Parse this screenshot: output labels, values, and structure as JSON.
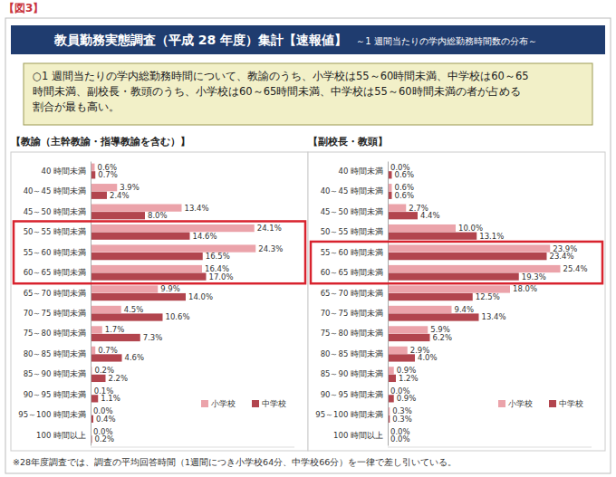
{
  "figure_label": "【図3】",
  "header": {
    "title": "教員勤務実態調査（平成 28 年度）集計【速報値】",
    "subtitle": "～1 週間当たりの学内総勤務時間数の分布～"
  },
  "summary": {
    "lines": [
      "○1 週間当たりの学内総勤務時間について、教諭のうち、小学校は55～60時間未満、中学校は60～65",
      "時間未満、副校長・教頭のうち、小学校は60～65時間未満、中学校は55～60時間未満の者が占める",
      "割合が最も高い。"
    ]
  },
  "footnote": "※28年度調査では、調査の平均回答時間（1週間につき小学校64分、中学校66分）を一律で差し引いている。",
  "chart_data": [
    {
      "type": "bar",
      "title": "【教諭（主幹教諭・指導教諭を含む）】",
      "orientation": "horizontal",
      "data_labels": true,
      "tick_labels": "y",
      "legend": "lower right",
      "categories": [
        "40 時間未満",
        "40～45 時間未満",
        "45～50 時間未満",
        "50～55 時間未満",
        "55～60 時間未満",
        "60～65 時間未満",
        "65～70 時間未満",
        "70～75 時間未満",
        "75～80 時間未満",
        "80～85 時間未満",
        "85～90 時間未満",
        "90～95 時間未満",
        "95～100 時間未満",
        "100 時間以上"
      ],
      "xlim": [
        0,
        30
      ],
      "series": [
        {
          "name": "小学校",
          "color": "#eba3aa",
          "values": [
            0.6,
            3.9,
            13.4,
            24.1,
            24.3,
            16.4,
            9.9,
            4.5,
            1.7,
            0.7,
            0.2,
            0.1,
            0.0,
            0.0
          ],
          "value_labels": [
            "0.6%",
            "3.9%",
            "13.4%",
            "24.1%",
            "24.3%",
            "16.4%",
            "9.9%",
            "4.5%",
            "1.7%",
            "0.7%",
            "0.2%",
            "0.1%",
            "0.0%",
            "0.0%"
          ]
        },
        {
          "name": "中学校",
          "color": "#b2454e",
          "values": [
            0.7,
            2.4,
            8.0,
            14.6,
            16.5,
            17.0,
            14.0,
            10.6,
            7.3,
            4.6,
            2.2,
            1.1,
            0.4,
            0.2
          ],
          "value_labels": [
            "0.7%",
            "2.4%",
            "8.0%",
            "14.6%",
            "16.5%",
            "17.0%",
            "14.0%",
            "10.6%",
            "7.3%",
            "4.6%",
            "2.2%",
            "1.1%",
            "0.4%",
            "0.2%"
          ]
        }
      ]
    },
    {
      "type": "bar",
      "title": "【副校長・教頭】",
      "orientation": "horizontal",
      "data_labels": true,
      "tick_labels": "y",
      "legend": "lower right",
      "categories": [
        "40 時間未満",
        "40～45 時間未満",
        "45～50 時間未満",
        "50～55 時間未満",
        "55～60 時間未満",
        "60～65 時間未満",
        "65～70 時間未満",
        "70～75 時間未満",
        "75～80 時間未満",
        "80～85 時間未満",
        "85～90 時間未満",
        "90～95 時間未満",
        "95～100 時間未満",
        "100 時間以上"
      ],
      "xlim": [
        0,
        30
      ],
      "series": [
        {
          "name": "小学校",
          "color": "#eba3aa",
          "values": [
            0.0,
            0.6,
            2.7,
            10.0,
            23.9,
            25.4,
            18.0,
            9.4,
            5.9,
            2.9,
            0.9,
            0.0,
            0.3,
            0.0
          ],
          "value_labels": [
            "0.0%",
            "0.6%",
            "2.7%",
            "10.0%",
            "23.9%",
            "25.4%",
            "18.0%",
            "9.4%",
            "5.9%",
            "2.9%",
            "0.9%",
            "0.0%",
            "0.3%",
            "0.0%"
          ]
        },
        {
          "name": "中学校",
          "color": "#b2454e",
          "values": [
            0.6,
            0.6,
            4.4,
            13.1,
            23.4,
            19.3,
            12.5,
            13.4,
            6.2,
            4.0,
            1.2,
            0.9,
            0.3,
            0.0
          ],
          "value_labels": [
            "0.6%",
            "0.6%",
            "4.4%",
            "13.1%",
            "23.4%",
            "19.3%",
            "12.5%",
            "13.4%",
            "6.2%",
            "4.0%",
            "1.2%",
            "0.9%",
            "0.3%",
            "0.0%"
          ]
        }
      ]
    }
  ]
}
